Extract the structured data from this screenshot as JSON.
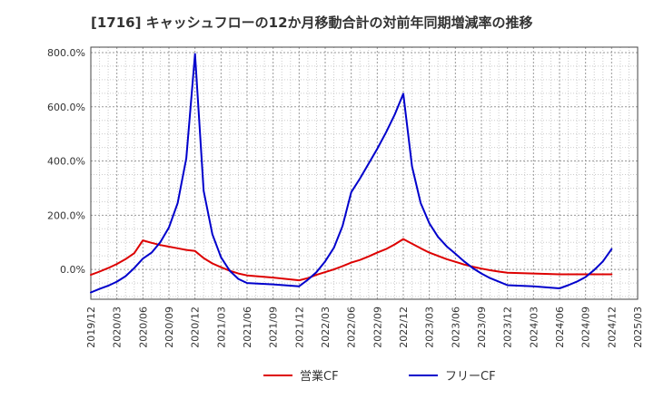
{
  "chart_data": {
    "type": "line",
    "title": "[1716]  キャッシュフローの12か月移動合計の対前年同期増減率の推移",
    "xlabel": "",
    "ylabel": "",
    "x_ticks": [
      "2019/12",
      "2020/03",
      "2020/06",
      "2020/09",
      "2020/12",
      "2021/03",
      "2021/06",
      "2021/09",
      "2021/12",
      "2022/03",
      "2022/06",
      "2022/09",
      "2022/12",
      "2023/03",
      "2023/06",
      "2023/09",
      "2023/12",
      "2024/03",
      "2024/06",
      "2024/09",
      "2024/12",
      "2025/03"
    ],
    "y_ticks": [
      "800.0%",
      "600.0%",
      "400.0%",
      "200.0%",
      "0.0%"
    ],
    "y_tick_values": [
      800,
      600,
      400,
      200,
      0
    ],
    "ylim": [
      -110,
      820
    ],
    "grid": true,
    "legend_position": "bottom",
    "series": [
      {
        "name": "営業CF",
        "color": "#dd0000",
        "points": [
          [
            "2019/12",
            -20
          ],
          [
            "2020/01",
            -8
          ],
          [
            "2020/02",
            5
          ],
          [
            "2020/03",
            20
          ],
          [
            "2020/04",
            38
          ],
          [
            "2020/05",
            60
          ],
          [
            "2020/06",
            107
          ],
          [
            "2020/07",
            98
          ],
          [
            "2020/08",
            90
          ],
          [
            "2020/09",
            84
          ],
          [
            "2020/10",
            78
          ],
          [
            "2020/11",
            72
          ],
          [
            "2020/12",
            68
          ],
          [
            "2021/01",
            42
          ],
          [
            "2021/02",
            22
          ],
          [
            "2021/03",
            8
          ],
          [
            "2021/04",
            -5
          ],
          [
            "2021/05",
            -15
          ],
          [
            "2021/06",
            -22
          ],
          [
            "2021/09",
            -30
          ],
          [
            "2021/12",
            -40
          ],
          [
            "2022/01",
            -32
          ],
          [
            "2022/02",
            -20
          ],
          [
            "2022/03",
            -10
          ],
          [
            "2022/04",
            0
          ],
          [
            "2022/05",
            12
          ],
          [
            "2022/06",
            25
          ],
          [
            "2022/07",
            35
          ],
          [
            "2022/08",
            48
          ],
          [
            "2022/09",
            62
          ],
          [
            "2022/10",
            75
          ],
          [
            "2022/11",
            92
          ],
          [
            "2022/12",
            112
          ],
          [
            "2023/01",
            95
          ],
          [
            "2023/02",
            78
          ],
          [
            "2023/03",
            62
          ],
          [
            "2023/04",
            50
          ],
          [
            "2023/05",
            38
          ],
          [
            "2023/06",
            28
          ],
          [
            "2023/07",
            18
          ],
          [
            "2023/08",
            10
          ],
          [
            "2023/09",
            3
          ],
          [
            "2023/10",
            -3
          ],
          [
            "2023/11",
            -8
          ],
          [
            "2023/12",
            -12
          ],
          [
            "2024/03",
            -15
          ],
          [
            "2024/06",
            -18
          ],
          [
            "2024/09",
            -18
          ],
          [
            "2024/12",
            -18
          ]
        ]
      },
      {
        "name": "フリーCF",
        "color": "#0000cc",
        "points": [
          [
            "2019/12",
            -85
          ],
          [
            "2020/01",
            -72
          ],
          [
            "2020/02",
            -60
          ],
          [
            "2020/03",
            -45
          ],
          [
            "2020/04",
            -25
          ],
          [
            "2020/05",
            5
          ],
          [
            "2020/06",
            40
          ],
          [
            "2020/07",
            62
          ],
          [
            "2020/08",
            100
          ],
          [
            "2020/09",
            155
          ],
          [
            "2020/10",
            245
          ],
          [
            "2020/11",
            410
          ],
          [
            "2020/12",
            795
          ],
          [
            "2021/01",
            290
          ],
          [
            "2021/02",
            130
          ],
          [
            "2021/03",
            45
          ],
          [
            "2021/04",
            -5
          ],
          [
            "2021/05",
            -35
          ],
          [
            "2021/06",
            -50
          ],
          [
            "2021/09",
            -55
          ],
          [
            "2021/12",
            -62
          ],
          [
            "2022/01",
            -38
          ],
          [
            "2022/02",
            -10
          ],
          [
            "2022/03",
            30
          ],
          [
            "2022/04",
            80
          ],
          [
            "2022/05",
            160
          ],
          [
            "2022/06",
            285
          ],
          [
            "2022/07",
            335
          ],
          [
            "2022/08",
            390
          ],
          [
            "2022/09",
            445
          ],
          [
            "2022/10",
            505
          ],
          [
            "2022/11",
            570
          ],
          [
            "2022/12",
            648
          ],
          [
            "2023/01",
            380
          ],
          [
            "2023/02",
            245
          ],
          [
            "2023/03",
            170
          ],
          [
            "2023/04",
            120
          ],
          [
            "2023/05",
            85
          ],
          [
            "2023/06",
            58
          ],
          [
            "2023/07",
            30
          ],
          [
            "2023/08",
            5
          ],
          [
            "2023/09",
            -15
          ],
          [
            "2023/10",
            -32
          ],
          [
            "2023/11",
            -45
          ],
          [
            "2023/12",
            -58
          ],
          [
            "2024/03",
            -62
          ],
          [
            "2024/06",
            -70
          ],
          [
            "2024/07",
            -58
          ],
          [
            "2024/08",
            -45
          ],
          [
            "2024/09",
            -28
          ],
          [
            "2024/10",
            -2
          ],
          [
            "2024/11",
            30
          ],
          [
            "2024/12",
            75
          ]
        ]
      }
    ]
  }
}
